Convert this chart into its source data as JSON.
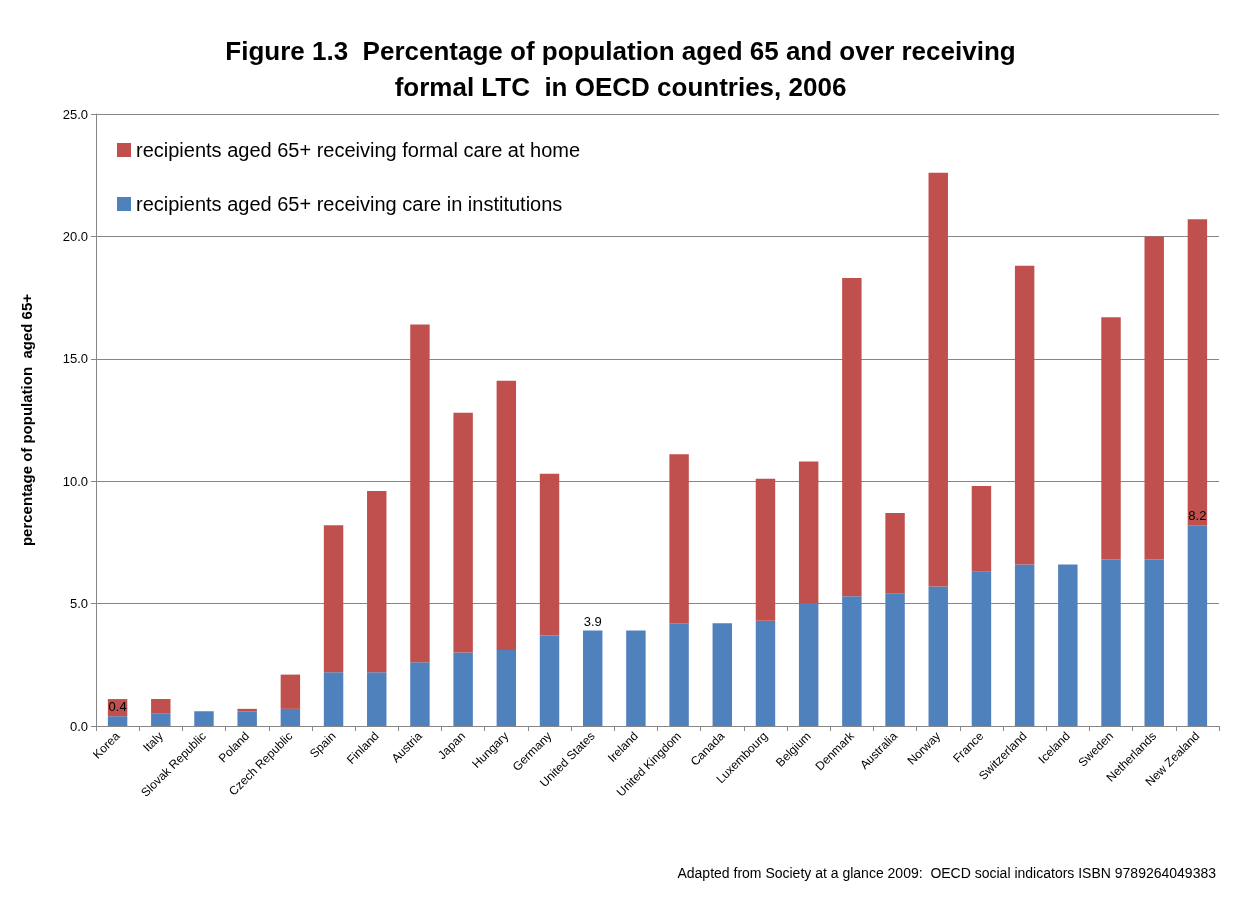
{
  "chart_data": {
    "type": "bar",
    "stacked": true,
    "title": "Figure 1.3  Percentage of population aged 65 and over receiving\nformal LTC  in OECD countries, 2006",
    "ylabel": "percentage of population  aged 65+",
    "categories": [
      "Korea",
      "Italy",
      "Slovak Republic",
      "Poland",
      "Czech Republic",
      "Spain",
      "Finland",
      "Austria",
      "Japan",
      "Hungary",
      "Germany",
      "United States",
      "Ireland",
      "United Kingdom",
      "Canada",
      "Luxembourg",
      "Belgium",
      "Denmark",
      "Australia",
      "Norway",
      "France",
      "Switzerland",
      "Iceland",
      "Sweden",
      "Netherlands",
      "New Zealand"
    ],
    "series": [
      {
        "name": "recipients aged 65+ receiving care in institutions",
        "color": "#4f81bd",
        "values": [
          0.4,
          0.5,
          0.6,
          0.6,
          0.7,
          2.2,
          2.2,
          2.6,
          3.0,
          3.1,
          3.7,
          3.9,
          3.9,
          4.2,
          4.2,
          4.3,
          5.0,
          5.3,
          5.4,
          5.7,
          6.3,
          6.6,
          6.6,
          6.8,
          6.8,
          8.2
        ],
        "value_labels": [
          "0.4",
          null,
          null,
          null,
          null,
          null,
          null,
          null,
          null,
          null,
          null,
          "3.9",
          null,
          null,
          null,
          null,
          null,
          null,
          null,
          null,
          null,
          null,
          null,
          null,
          null,
          "8.2"
        ]
      },
      {
        "name": "recipients aged 65+ receiving formal care at home",
        "color": "#c0504d",
        "values": [
          0.7,
          0.6,
          null,
          0.1,
          1.4,
          6.0,
          7.4,
          13.8,
          9.8,
          11.0,
          6.6,
          null,
          null,
          6.9,
          null,
          5.8,
          5.8,
          13.0,
          3.3,
          16.9,
          3.5,
          12.2,
          null,
          9.9,
          13.2,
          12.5
        ]
      }
    ],
    "ylim": [
      0,
      25
    ],
    "yticks": [
      {
        "value": 0,
        "label": "0.0"
      },
      {
        "value": 5,
        "label": "5.0"
      },
      {
        "value": 10,
        "label": "10.0"
      },
      {
        "value": 15,
        "label": "15.0"
      },
      {
        "value": 20,
        "label": "20.0"
      },
      {
        "value": 25,
        "label": "25.0"
      }
    ],
    "grid": "y",
    "legend": "top left",
    "annotations": [
      "Adapted from Society at a glance 2009:  OECD social indicators ISBN 9789264049383"
    ]
  }
}
